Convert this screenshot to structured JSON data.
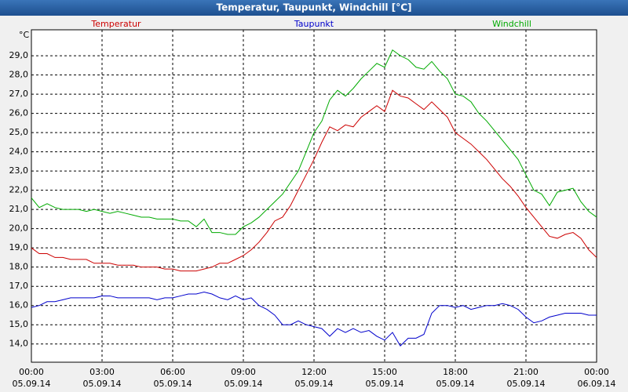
{
  "chart_data": {
    "type": "line",
    "title": "Temperatur, Taupunkt, Windchill [°C]",
    "y_unit": "°C",
    "x": [
      0,
      20,
      40,
      60,
      80,
      100,
      120,
      140,
      160,
      180,
      200,
      220,
      240,
      260,
      280,
      300,
      320,
      340,
      360,
      380,
      400,
      420,
      440,
      460,
      480,
      500,
      520,
      540,
      560,
      580,
      600,
      620,
      640,
      660,
      680,
      700,
      720,
      740,
      760,
      780,
      800,
      820,
      840,
      860,
      880,
      900,
      920,
      940,
      960,
      980,
      1000,
      1020,
      1040,
      1060,
      1080,
      1100,
      1120,
      1140,
      1160,
      1180,
      1200,
      1220,
      1240,
      1260,
      1280,
      1300,
      1320,
      1340,
      1360,
      1380,
      1400,
      1420,
      1440
    ],
    "series": [
      {
        "name": "Temperatur",
        "color": "#cc0000",
        "values": [
          19.0,
          18.7,
          18.7,
          18.5,
          18.5,
          18.4,
          18.4,
          18.4,
          18.2,
          18.2,
          18.2,
          18.1,
          18.1,
          18.1,
          18.0,
          18.0,
          18.0,
          17.9,
          17.9,
          17.8,
          17.8,
          17.8,
          17.9,
          18.0,
          18.2,
          18.2,
          18.4,
          18.6,
          18.9,
          19.3,
          19.8,
          20.4,
          20.6,
          21.2,
          22.0,
          22.8,
          23.6,
          24.5,
          25.3,
          25.1,
          25.4,
          25.3,
          25.8,
          26.1,
          26.4,
          26.1,
          27.2,
          26.9,
          26.8,
          26.5,
          26.2,
          26.6,
          26.2,
          25.8,
          25.0,
          24.7,
          24.4,
          24.0,
          23.6,
          23.1,
          22.6,
          22.2,
          21.7,
          21.1,
          20.6,
          20.1,
          19.6,
          19.5,
          19.7,
          19.8,
          19.5,
          18.9,
          18.5
        ]
      },
      {
        "name": "Taupunkt",
        "color": "#0000cc",
        "values": [
          15.9,
          16.0,
          16.2,
          16.2,
          16.3,
          16.4,
          16.4,
          16.4,
          16.4,
          16.5,
          16.5,
          16.4,
          16.4,
          16.4,
          16.4,
          16.4,
          16.3,
          16.4,
          16.4,
          16.5,
          16.6,
          16.6,
          16.7,
          16.6,
          16.4,
          16.3,
          16.5,
          16.3,
          16.4,
          16.0,
          15.8,
          15.5,
          15.0,
          15.0,
          15.2,
          15.0,
          14.9,
          14.8,
          14.4,
          14.8,
          14.6,
          14.8,
          14.6,
          14.7,
          14.4,
          14.2,
          14.6,
          13.9,
          14.3,
          14.3,
          14.5,
          15.6,
          16.0,
          16.0,
          15.9,
          16.0,
          15.8,
          15.9,
          16.0,
          16.0,
          16.1,
          16.0,
          15.8,
          15.4,
          15.1,
          15.2,
          15.4,
          15.5,
          15.6,
          15.6,
          15.6,
          15.5,
          15.5
        ]
      },
      {
        "name": "Windchill",
        "color": "#00aa00",
        "values": [
          21.6,
          21.1,
          21.3,
          21.1,
          21.0,
          21.0,
          21.0,
          20.9,
          21.0,
          20.9,
          20.8,
          20.9,
          20.8,
          20.7,
          20.6,
          20.6,
          20.5,
          20.5,
          20.5,
          20.4,
          20.4,
          20.1,
          20.5,
          19.8,
          19.8,
          19.7,
          19.7,
          20.1,
          20.3,
          20.6,
          21.0,
          21.4,
          21.8,
          22.4,
          23.0,
          24.0,
          25.0,
          25.6,
          26.7,
          27.2,
          26.9,
          27.3,
          27.8,
          28.2,
          28.6,
          28.4,
          29.3,
          29.0,
          28.8,
          28.4,
          28.3,
          28.7,
          28.2,
          27.8,
          27.0,
          26.9,
          26.6,
          26.0,
          25.6,
          25.1,
          24.6,
          24.1,
          23.6,
          22.8,
          22.0,
          21.8,
          21.2,
          21.9,
          22.0,
          22.1,
          21.4,
          20.9,
          20.6
        ]
      }
    ],
    "xlim": [
      0,
      1440
    ],
    "xticks": [
      {
        "value": 0,
        "label": "00:00",
        "date": "05.09.14"
      },
      {
        "value": 180,
        "label": "03:00",
        "date": "05.09.14"
      },
      {
        "value": 360,
        "label": "06:00",
        "date": "05.09.14"
      },
      {
        "value": 540,
        "label": "09:00",
        "date": "05.09.14"
      },
      {
        "value": 720,
        "label": "12:00",
        "date": "05.09.14"
      },
      {
        "value": 900,
        "label": "15:00",
        "date": "05.09.14"
      },
      {
        "value": 1080,
        "label": "18:00",
        "date": "05.09.14"
      },
      {
        "value": 1260,
        "label": "21:00",
        "date": "05.09.14"
      },
      {
        "value": 1440,
        "label": "00:00",
        "date": "06.09.14"
      }
    ],
    "ylim": [
      13.05,
      30.35
    ],
    "yticks": [
      {
        "value": 14,
        "label": "14,0"
      },
      {
        "value": 15,
        "label": "15,0"
      },
      {
        "value": 16,
        "label": "16,0"
      },
      {
        "value": 17,
        "label": "17,0"
      },
      {
        "value": 18,
        "label": "18,0"
      },
      {
        "value": 19,
        "label": "19,0"
      },
      {
        "value": 20,
        "label": "20,0"
      },
      {
        "value": 21,
        "label": "21,0"
      },
      {
        "value": 22,
        "label": "22,0"
      },
      {
        "value": 23,
        "label": "23,0"
      },
      {
        "value": 24,
        "label": "24,0"
      },
      {
        "value": 25,
        "label": "25,0"
      },
      {
        "value": 26,
        "label": "26,0"
      },
      {
        "value": 27,
        "label": "27,0"
      },
      {
        "value": 28,
        "label": "28,0"
      },
      {
        "value": 29,
        "label": "29,0"
      }
    ],
    "grid": true
  }
}
